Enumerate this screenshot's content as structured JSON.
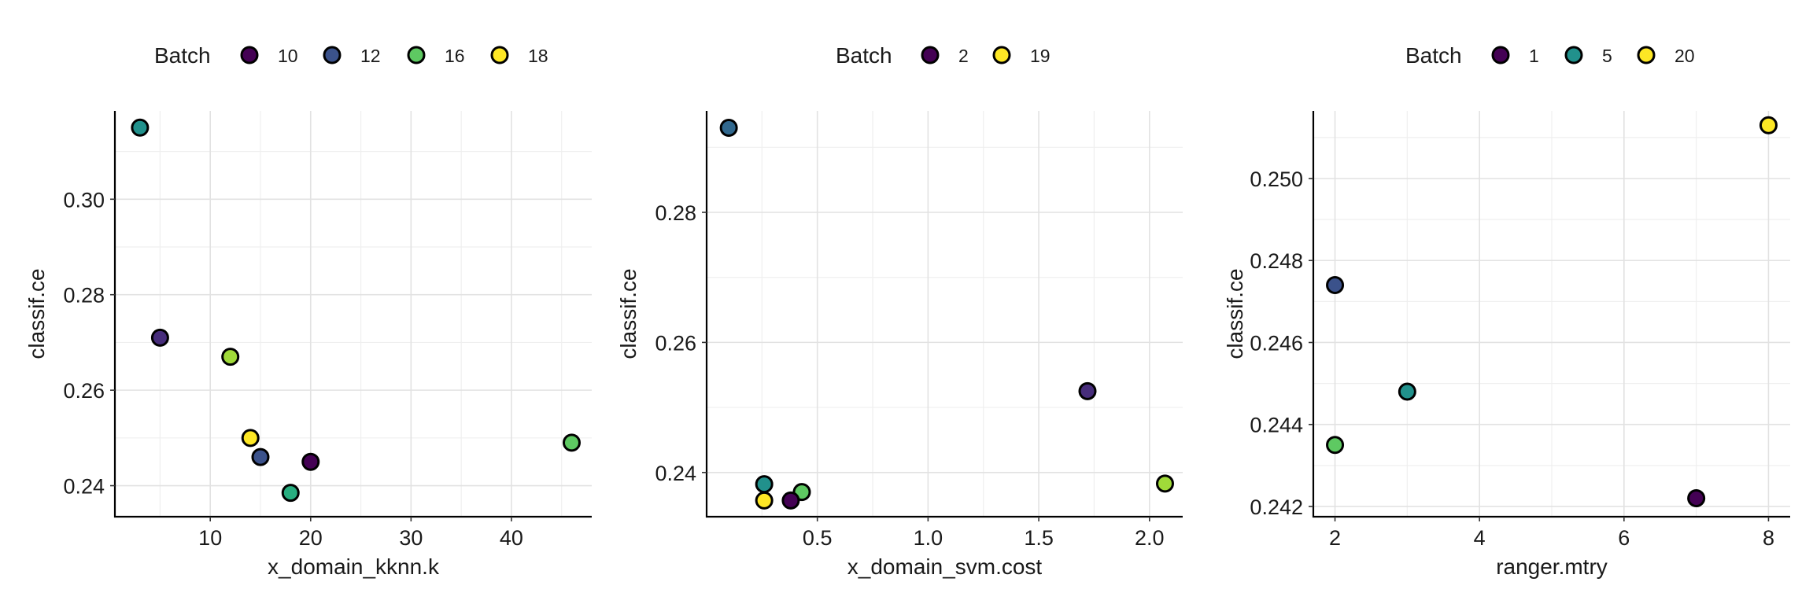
{
  "chart_data": [
    {
      "type": "scatter",
      "xlabel": "x_domain_kknn.k",
      "ylabel": "classif.ce",
      "legend": {
        "title": "Batch",
        "position": "top",
        "entries": [
          {
            "label": "10",
            "color": "#440154"
          },
          {
            "label": "12",
            "color": "#3b528b"
          },
          {
            "label": "16",
            "color": "#5ec962"
          },
          {
            "label": "18",
            "color": "#fde725"
          }
        ]
      },
      "xlim": [
        0.5,
        48
      ],
      "ylim": [
        0.2335,
        0.3185
      ],
      "xticks": [
        10,
        20,
        30,
        40
      ],
      "yticks": [
        0.24,
        0.26,
        0.28,
        0.3
      ],
      "ytick_labels": [
        "0.24",
        "0.26",
        "0.28",
        "0.30"
      ],
      "grid": true,
      "points": [
        {
          "x": 3,
          "y": 0.315,
          "color": "#21918c"
        },
        {
          "x": 5,
          "y": 0.271,
          "color": "#472d7b"
        },
        {
          "x": 12,
          "y": 0.267,
          "color": "#a0da39"
        },
        {
          "x": 14,
          "y": 0.25,
          "color": "#fde725"
        },
        {
          "x": 15,
          "y": 0.246,
          "color": "#3b528b"
        },
        {
          "x": 20,
          "y": 0.245,
          "color": "#440154"
        },
        {
          "x": 18,
          "y": 0.2385,
          "color": "#28ae80"
        },
        {
          "x": 46,
          "y": 0.249,
          "color": "#5ec962"
        }
      ]
    },
    {
      "type": "scatter",
      "xlabel": "x_domain_svm.cost",
      "ylabel": "classif.ce",
      "legend": {
        "title": "Batch",
        "position": "top",
        "entries": [
          {
            "label": "2",
            "color": "#440154"
          },
          {
            "label": "19",
            "color": "#fde725"
          }
        ]
      },
      "xlim": [
        0.0,
        2.15
      ],
      "ylim": [
        0.2332,
        0.2956
      ],
      "xticks": [
        0.5,
        1.0,
        1.5,
        2.0
      ],
      "xtick_labels": [
        "0.5",
        "1.0",
        "1.5",
        "2.0"
      ],
      "yticks": [
        0.24,
        0.26,
        0.28
      ],
      "ytick_labels": [
        "0.24",
        "0.26",
        "0.28"
      ],
      "grid": true,
      "points": [
        {
          "x": 0.1,
          "y": 0.293,
          "color": "#31688e"
        },
        {
          "x": 1.72,
          "y": 0.2525,
          "color": "#472d7b"
        },
        {
          "x": 0.26,
          "y": 0.2382,
          "color": "#21918c"
        },
        {
          "x": 0.43,
          "y": 0.237,
          "color": "#5ec962"
        },
        {
          "x": 0.38,
          "y": 0.2357,
          "color": "#440154"
        },
        {
          "x": 0.26,
          "y": 0.2357,
          "color": "#fde725"
        },
        {
          "x": 2.07,
          "y": 0.2383,
          "color": "#a0da39"
        }
      ]
    },
    {
      "type": "scatter",
      "xlabel": "ranger.mtry",
      "ylabel": "classif.ce",
      "legend": {
        "title": "Batch",
        "position": "top",
        "entries": [
          {
            "label": "1",
            "color": "#440154"
          },
          {
            "label": "5",
            "color": "#21918c"
          },
          {
            "label": "20",
            "color": "#fde725"
          }
        ]
      },
      "xlim": [
        1.7,
        8.3
      ],
      "ylim": [
        0.24175,
        0.25165
      ],
      "xticks": [
        2,
        4,
        6,
        8
      ],
      "yticks": [
        0.242,
        0.244,
        0.246,
        0.248,
        0.25
      ],
      "ytick_labels": [
        "0.242",
        "0.244",
        "0.246",
        "0.248",
        "0.250"
      ],
      "grid": true,
      "points": [
        {
          "x": 2,
          "y": 0.2474,
          "color": "#3b528b"
        },
        {
          "x": 3,
          "y": 0.2448,
          "color": "#21918c"
        },
        {
          "x": 2,
          "y": 0.2435,
          "color": "#5ec962"
        },
        {
          "x": 7,
          "y": 0.2422,
          "color": "#440154"
        },
        {
          "x": 8,
          "y": 0.2513,
          "color": "#fde725"
        }
      ]
    }
  ]
}
